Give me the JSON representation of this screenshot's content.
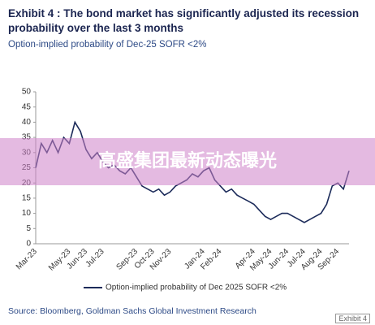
{
  "chart_data": {
    "type": "line",
    "title": "Exhibit 4 : The bond market has significantly adjusted its recession probability over the last 3 months",
    "subtitle": "Option-implied probability of Dec-25 SOFR <2%",
    "categories": [
      "Mar-23",
      null,
      null,
      null,
      null,
      null,
      "May-23",
      null,
      null,
      "Jun-23",
      null,
      null,
      "Jul-23",
      null,
      null,
      null,
      null,
      null,
      "Sep-23",
      null,
      null,
      "Oct-23",
      null,
      null,
      "Nov-23",
      null,
      null,
      null,
      null,
      null,
      "Jan-24",
      null,
      null,
      "Feb-24",
      null,
      null,
      null,
      null,
      null,
      "Apr-24",
      null,
      null,
      "May-24",
      null,
      null,
      "Jun-24",
      null,
      null,
      "Jul-24",
      null,
      null,
      "Aug-24",
      null,
      null,
      "Sep-24",
      null,
      null
    ],
    "series": [
      {
        "name": "Option-implied probability of Dec 2025 SOFR <2%",
        "color": "#1c2b5a",
        "values": [
          25,
          33,
          30,
          34,
          30,
          35,
          33,
          40,
          37,
          31,
          28,
          30,
          27,
          25,
          26,
          24,
          23,
          25,
          22,
          19,
          18,
          17,
          18,
          16,
          17,
          19,
          20,
          21,
          23,
          22,
          24,
          25,
          21,
          19,
          17,
          18,
          16,
          15,
          14,
          13,
          11,
          9,
          8,
          9,
          10,
          10,
          9,
          8,
          7,
          8,
          9,
          10,
          13,
          19,
          20,
          18,
          24
        ]
      }
    ],
    "ylim": [
      0,
      50
    ],
    "yticks": [
      0,
      5,
      10,
      15,
      20,
      25,
      30,
      35,
      40,
      45,
      50
    ],
    "grid": false,
    "legend": "bottom",
    "source": "Source: Bloomberg, Goldman Sachs Global Investment Research",
    "tag": "Exhibit 4",
    "overlay_banner": "高盛集团最新动态曝光"
  }
}
